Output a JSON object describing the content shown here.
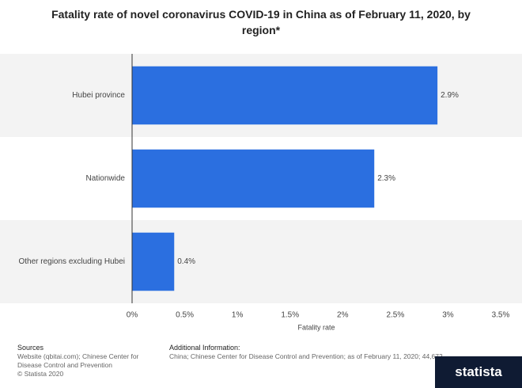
{
  "chart_data": {
    "type": "hbar",
    "title": "Fatality rate of novel coronavirus COVID-19 in China as of February 11, 2020, by region*",
    "categories": [
      "Hubei province",
      "Nationwide",
      "Other regions excluding Hubei"
    ],
    "values": [
      2.9,
      2.3,
      0.4
    ],
    "value_labels": [
      "2.9%",
      "2.3%",
      "0.4%"
    ],
    "color": "#2b6fe0",
    "x_label": "Fatality rate",
    "xlim": [
      0,
      3.5
    ],
    "xticks": [
      {
        "value": 0,
        "label": "0%"
      },
      {
        "value": 0.5,
        "label": "0.5%"
      },
      {
        "value": 1,
        "label": "1%"
      },
      {
        "value": 1.5,
        "label": "1.5%"
      },
      {
        "value": 2,
        "label": "2%"
      },
      {
        "value": 2.5,
        "label": "2.5%"
      },
      {
        "value": 3,
        "label": "3%"
      },
      {
        "value": 3.5,
        "label": "3.5%"
      }
    ],
    "grid": false
  },
  "footer": {
    "sources_title": "Sources",
    "sources_text": "Website (qbitai.com); Chinese Center for Disease Control and Prevention",
    "copyright": "© Statista 2020",
    "info_title": "Additional Information:",
    "info_text": "China; Chinese Center for Disease Control and Prevention; as of February 11, 2020; 44,672",
    "brand": "statista"
  }
}
